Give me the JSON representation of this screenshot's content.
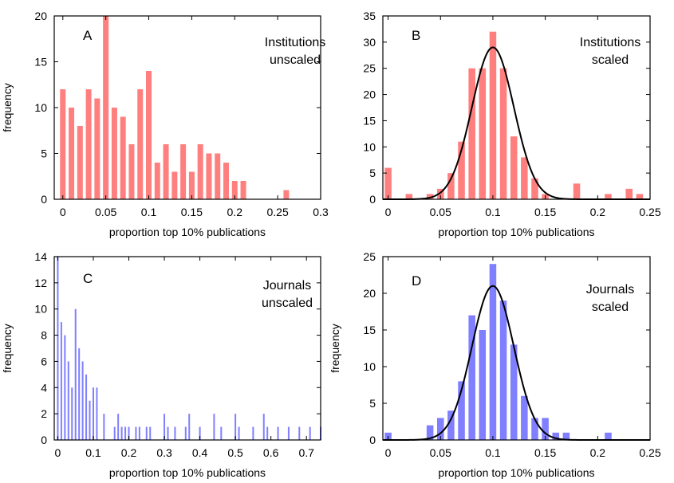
{
  "figure": {
    "description_free": true
  },
  "chart_data": [
    {
      "type": "bar",
      "panel_letter": "A",
      "annotation": [
        "Institutions",
        "unscaled"
      ],
      "xlabel": "proportion top 10% publications",
      "ylabel": "frequency",
      "xlim": [
        -0.01,
        0.3
      ],
      "ylim": [
        0,
        20
      ],
      "xticks": [
        "0",
        "0.05",
        "0.1",
        "0.15",
        "0.2",
        "0.25",
        "0.3"
      ],
      "yticks": [
        "0",
        "5",
        "10",
        "15",
        "20"
      ],
      "bar_color": "#ff7f7f",
      "x": [
        0.0,
        0.01,
        0.02,
        0.03,
        0.04,
        0.05,
        0.06,
        0.07,
        0.08,
        0.09,
        0.1,
        0.11,
        0.12,
        0.13,
        0.14,
        0.15,
        0.16,
        0.17,
        0.18,
        0.19,
        0.2,
        0.21,
        0.26
      ],
      "values": [
        12,
        10,
        8,
        12,
        11,
        20,
        10,
        9,
        6,
        12,
        14,
        4,
        6,
        3,
        6,
        3,
        6,
        5,
        5,
        4,
        2,
        2,
        1
      ],
      "bar_width": 0.0065,
      "curve": null
    },
    {
      "type": "bar",
      "panel_letter": "B",
      "annotation": [
        "Institutions",
        "scaled"
      ],
      "xlabel": "proportion top 10% publications",
      "ylabel": "",
      "xlim": [
        -0.005,
        0.25
      ],
      "ylim": [
        0,
        35
      ],
      "xticks": [
        "0",
        "0.05",
        "0.1",
        "0.15",
        "0.2",
        "0.25"
      ],
      "yticks": [
        "0",
        "5",
        "10",
        "15",
        "20",
        "25",
        "30",
        "35"
      ],
      "bar_color": "#ff7f7f",
      "x": [
        0.0,
        0.02,
        0.04,
        0.05,
        0.06,
        0.07,
        0.08,
        0.09,
        0.1,
        0.11,
        0.12,
        0.13,
        0.14,
        0.15,
        0.18,
        0.21,
        0.23,
        0.24
      ],
      "values": [
        6,
        1,
        1,
        2,
        5,
        11,
        25,
        25,
        32,
        25,
        12,
        8,
        4,
        1,
        3,
        1,
        2,
        1
      ],
      "bar_width": 0.0065,
      "curve": {
        "type": "gaussian",
        "mean": 0.1,
        "sd": 0.02,
        "peak": 29
      }
    },
    {
      "type": "bar",
      "panel_letter": "C",
      "annotation": [
        "Journals",
        "unscaled"
      ],
      "xlabel": "proportion top 10% publications",
      "ylabel": "frequency",
      "xlim": [
        -0.01,
        0.74
      ],
      "ylim": [
        0,
        14
      ],
      "xticks": [
        "0",
        "0.1",
        "0.2",
        "0.3",
        "0.4",
        "0.5",
        "0.6",
        "0.7"
      ],
      "yticks": [
        "0",
        "2",
        "4",
        "6",
        "8",
        "10",
        "12",
        "14"
      ],
      "bar_color": "#7f7fff",
      "x": [
        0.0,
        0.01,
        0.02,
        0.03,
        0.04,
        0.05,
        0.06,
        0.07,
        0.08,
        0.09,
        0.1,
        0.11,
        0.13,
        0.16,
        0.17,
        0.18,
        0.19,
        0.2,
        0.22,
        0.23,
        0.25,
        0.26,
        0.3,
        0.31,
        0.33,
        0.36,
        0.37,
        0.4,
        0.44,
        0.46,
        0.5,
        0.51,
        0.55,
        0.58,
        0.59,
        0.62,
        0.65,
        0.68,
        0.71,
        0.74
      ],
      "values": [
        14,
        9,
        8,
        6,
        4,
        10,
        7,
        6,
        5,
        3,
        4,
        4,
        2,
        1,
        2,
        1,
        1,
        1,
        1,
        1,
        1,
        1,
        2,
        1,
        1,
        1,
        2,
        1,
        2,
        1,
        2,
        1,
        1,
        2,
        1,
        1,
        1,
        1,
        1,
        1
      ],
      "bar_width": 0.0045,
      "curve": null
    },
    {
      "type": "bar",
      "panel_letter": "D",
      "annotation": [
        "Journals",
        "scaled"
      ],
      "xlabel": "proportion top 10% publications",
      "ylabel": "frequency",
      "xlim": [
        -0.005,
        0.25
      ],
      "ylim": [
        0,
        25
      ],
      "xticks": [
        "0",
        "0.05",
        "0.1",
        "0.15",
        "0.2",
        "0.25"
      ],
      "yticks": [
        "0",
        "5",
        "10",
        "15",
        "20",
        "25"
      ],
      "bar_color": "#7f7fff",
      "x": [
        0.0,
        0.04,
        0.05,
        0.06,
        0.07,
        0.08,
        0.09,
        0.1,
        0.11,
        0.12,
        0.13,
        0.14,
        0.15,
        0.16,
        0.17,
        0.21
      ],
      "values": [
        1,
        2,
        3,
        4,
        8,
        17,
        15,
        24,
        19,
        13,
        6,
        3,
        3,
        1,
        1,
        1
      ],
      "bar_width": 0.0065,
      "curve": {
        "type": "gaussian",
        "mean": 0.1,
        "sd": 0.02,
        "peak": 21
      }
    }
  ]
}
